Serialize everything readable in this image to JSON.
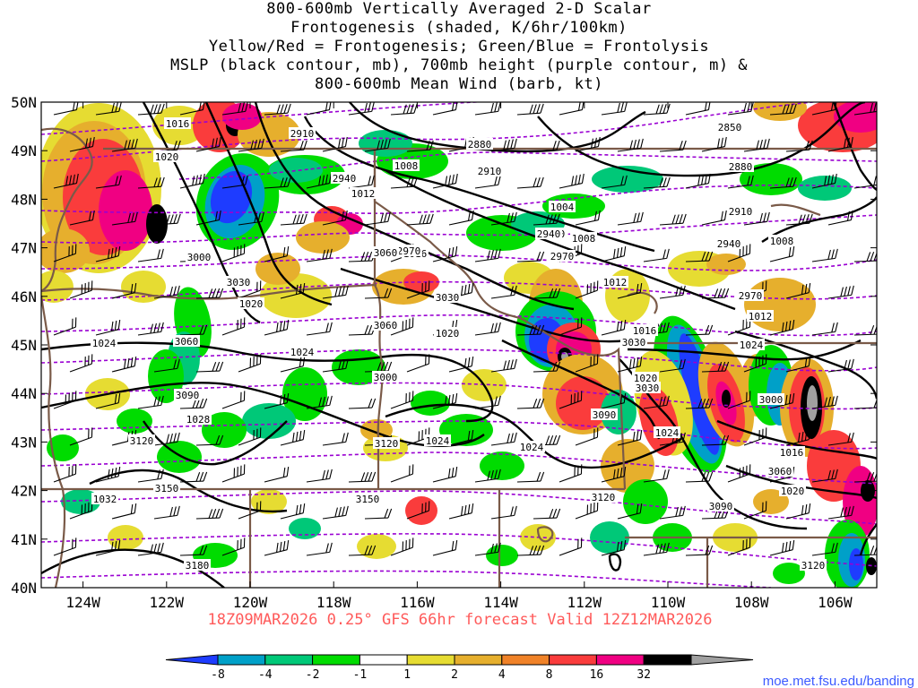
{
  "title": {
    "line1": "800-600mb Vertically Averaged 2-D Scalar",
    "line2": "Frontogenesis (shaded, K/6hr/100km)",
    "line3": "Yellow/Red = Frontogenesis;  Green/Blue = Frontolysis",
    "line4": "MSLP (black contour, mb), 700mb height (purple contour, m) &",
    "line5": "800-600mb Mean Wind (barb, kt)"
  },
  "axes": {
    "lat_labels": [
      "50N",
      "49N",
      "48N",
      "47N",
      "46N",
      "45N",
      "44N",
      "43N",
      "42N",
      "41N",
      "40N"
    ],
    "lon_labels": [
      "124W",
      "122W",
      "120W",
      "118W",
      "116W",
      "114W",
      "112W",
      "110W",
      "108W",
      "106W"
    ]
  },
  "footer": "18Z09MAR2026 0.25° GFS 66hr forecast Valid 12Z12MAR2026",
  "colorbar": {
    "ticks": [
      "-8",
      "-4",
      "-2",
      "-1",
      "1",
      "2",
      "4",
      "8",
      "16",
      "32"
    ],
    "colors": [
      "#1e3cff",
      "#00a0c8",
      "#00c878",
      "#00dc00",
      "#ffffff",
      "#e6dc32",
      "#e6af2d",
      "#f08228",
      "#fa3c3c",
      "#f00082",
      "#000000",
      "#a0a0a0"
    ]
  },
  "credit": "moe.met.fsu.edu/banding",
  "mslp_labels": [
    "1016",
    "1020",
    "1020",
    "1012",
    "1008",
    "1004",
    "1008",
    "1012",
    "1016",
    "1020",
    "1024",
    "1024",
    "1028",
    "1024",
    "1024",
    "1024",
    "1032",
    "1016",
    "1020",
    "1024",
    "1012",
    "1008",
    "1004",
    "1016",
    "1020"
  ],
  "height_labels": [
    "2910",
    "2940",
    "2880",
    "2910",
    "2940",
    "2970",
    "2940",
    "2970",
    "3000",
    "3030",
    "3060",
    "3030",
    "3060",
    "3090",
    "3120",
    "3150",
    "3120",
    "3150",
    "3180",
    "3090",
    "3030",
    "3000",
    "3060",
    "3090",
    "3120",
    "3120",
    "2850",
    "2880",
    "2910",
    "2940",
    "2970",
    "3000",
    "3030",
    "3060"
  ]
}
